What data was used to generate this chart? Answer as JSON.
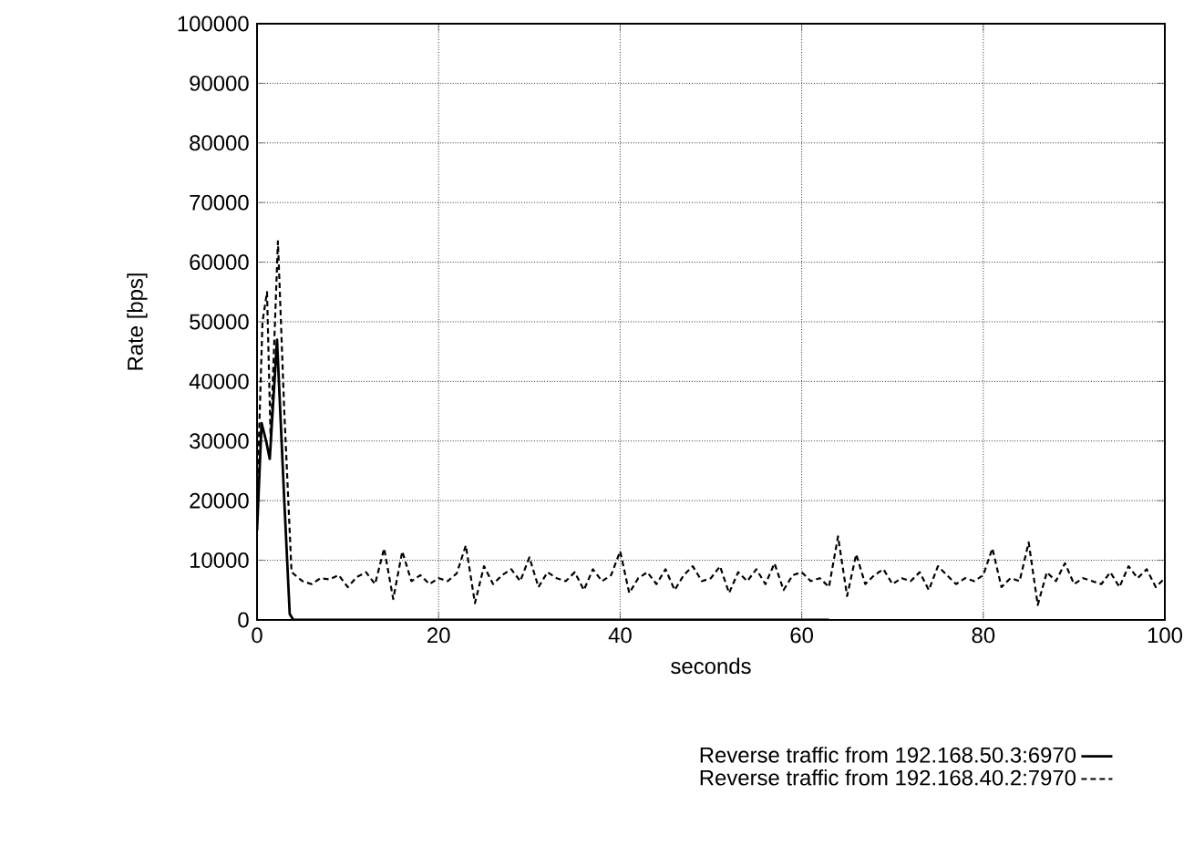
{
  "chart_data": {
    "type": "line",
    "xlabel": "seconds",
    "ylabel": "Rate [bps]",
    "xlim": [
      0,
      100
    ],
    "ylim": [
      0,
      100000
    ],
    "xticks": [
      0,
      20,
      40,
      60,
      80,
      100
    ],
    "yticks": [
      0,
      10000,
      20000,
      30000,
      40000,
      50000,
      60000,
      70000,
      80000,
      90000,
      100000
    ],
    "grid": true,
    "legend": "bottom",
    "marker": "none",
    "series": [
      {
        "name": "Reverse traffic from 192.168.50.3:6970",
        "color": "#000000",
        "line_style": "solid",
        "x": [
          0,
          0.5,
          1,
          1.4,
          2.2,
          3,
          3.6,
          4,
          63
        ],
        "values": [
          15000,
          33000,
          30000,
          27000,
          47000,
          20000,
          1000,
          0,
          0
        ]
      },
      {
        "name": "Reverse traffic from 192.168.40.2:7970",
        "color": "#000000",
        "line_style": "dashed",
        "x": [
          0,
          0.6,
          1.1,
          1.5,
          2.3,
          3,
          3.8,
          5,
          6,
          7,
          8,
          9,
          10,
          11,
          12,
          13,
          14,
          15,
          16,
          17,
          18,
          19,
          20,
          21,
          22,
          23,
          24,
          25,
          26,
          27,
          28,
          29,
          30,
          31,
          32,
          33,
          34,
          35,
          36,
          37,
          38,
          39,
          40,
          41,
          42,
          43,
          44,
          45,
          46,
          47,
          48,
          49,
          50,
          51,
          52,
          53,
          54,
          55,
          56,
          57,
          58,
          59,
          60,
          61,
          62,
          63,
          64,
          65,
          66,
          67,
          68,
          69,
          70,
          71,
          72,
          73,
          74,
          75,
          76,
          77,
          78,
          79,
          80,
          81,
          82,
          83,
          84,
          85,
          86,
          87,
          88,
          89,
          90,
          91,
          92,
          93,
          94,
          95,
          96,
          97,
          98,
          99,
          100
        ],
        "values": [
          20000,
          50000,
          55000,
          30000,
          63500,
          35000,
          8000,
          6500,
          6000,
          7000,
          6800,
          7500,
          5500,
          7200,
          8000,
          6000,
          12000,
          3500,
          11500,
          6500,
          7500,
          6000,
          7000,
          6500,
          7800,
          12500,
          2800,
          9000,
          6000,
          7500,
          8500,
          6500,
          10500,
          5500,
          8000,
          7000,
          6500,
          8000,
          5000,
          8500,
          6500,
          7500,
          11500,
          4500,
          7000,
          8000,
          6000,
          8500,
          5000,
          7500,
          9000,
          6500,
          7000,
          9000,
          4500,
          8000,
          6500,
          8500,
          6000,
          9500,
          5000,
          7500,
          8000,
          6500,
          7000,
          5500,
          14000,
          4000,
          11000,
          6000,
          7500,
          8500,
          6000,
          7000,
          6500,
          8000,
          5000,
          9000,
          7500,
          6000,
          7000,
          6500,
          7500,
          12000,
          5500,
          7000,
          6500,
          13000,
          2500,
          8000,
          6500,
          9500,
          6000,
          7000,
          6500,
          6000,
          8000,
          5500,
          9000,
          7000,
          8500,
          5500,
          7000
        ]
      }
    ]
  }
}
